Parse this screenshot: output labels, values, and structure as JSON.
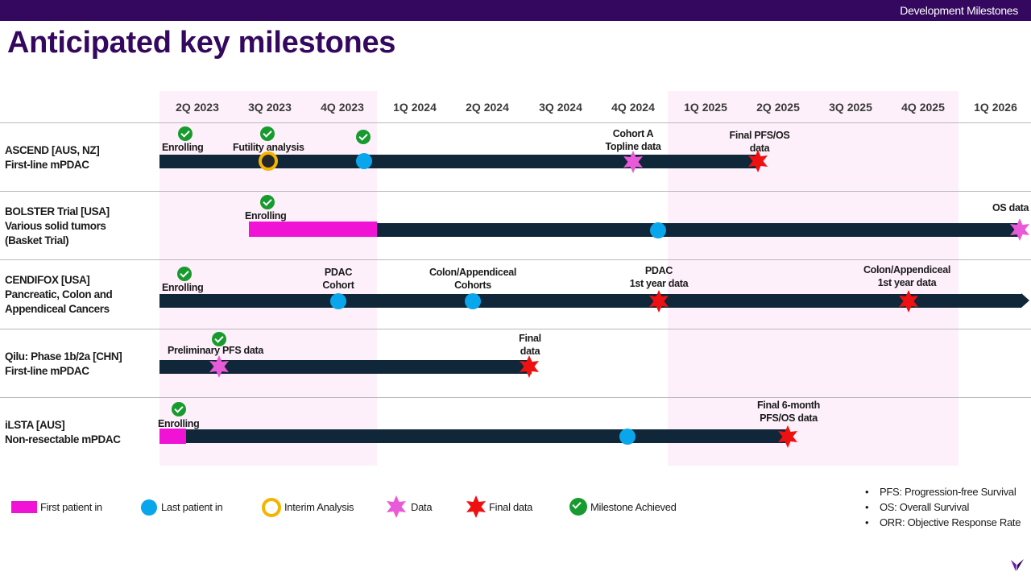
{
  "header": {
    "section_label": "Development Milestones"
  },
  "title": "Anticipated key milestones",
  "quarters": [
    "2Q 2023",
    "3Q 2023",
    "4Q 2023",
    "1Q 2024",
    "2Q 2024",
    "3Q 2024",
    "4Q 2024",
    "1Q 2025",
    "2Q 2025",
    "3Q 2025",
    "4Q 2025",
    "1Q 2026"
  ],
  "programs": [
    {
      "line1": "ASCEND [AUS, NZ]",
      "line2": "First-line mPDAC",
      "line3": ""
    },
    {
      "line1": "BOLSTER Trial [USA]",
      "line2": "Various solid tumors",
      "line3": "(Basket Trial)"
    },
    {
      "line1": "CENDIFOX [USA]",
      "line2": "Pancreatic, Colon and",
      "line3": "Appendiceal Cancers"
    },
    {
      "line1": "Qilu: Phase 1b/2a [CHN]",
      "line2": "First-line mPDAC",
      "line3": ""
    },
    {
      "line1": "iLSTA [AUS]",
      "line2": "Non-resectable mPDAC",
      "line3": ""
    }
  ],
  "labels": {
    "ascend_enrolling": "Enrolling",
    "ascend_futility": "Futility analysis",
    "ascend_cohort_a_1": "Cohort A",
    "ascend_cohort_a_2": "Topline data",
    "ascend_final_1": "Final PFS/OS",
    "ascend_final_2": "data",
    "bolster_enrolling": "Enrolling",
    "bolster_os": "OS data",
    "cendifox_enrolling": "Enrolling",
    "cendifox_pdac_1": "PDAC",
    "cendifox_pdac_2": "Cohort",
    "cendifox_colon_1": "Colon/Appendiceal",
    "cendifox_colon_2": "Cohorts",
    "cendifox_pdac_year_1": "PDAC",
    "cendifox_pdac_year_2": "1st year data",
    "cendifox_colon_year_1": "Colon/Appendiceal",
    "cendifox_colon_year_2": "1st year data",
    "qilu_prelim": "Preliminary PFS data",
    "qilu_final_1": "Final",
    "qilu_final_2": "data",
    "ilsta_enrolling": "Enrolling",
    "ilsta_final_1": "Final 6-month",
    "ilsta_final_2": "PFS/OS data"
  },
  "legend": {
    "first_patient": "First patient in",
    "last_patient": "Last patient in",
    "interim": "Interim Analysis",
    "data": "Data",
    "final_data": "Final data",
    "achieved": "Milestone Achieved"
  },
  "notes": [
    "PFS: Progression-free Survival",
    "OS: Overall Survival",
    "ORR: Objective Response Rate"
  ],
  "colors": {
    "brand": "#34085f",
    "bar": "#102639",
    "first_patient": "#f013d6",
    "last_patient": "#0aa6ec",
    "interim": "#f5b400",
    "data_star": "#e85ad8",
    "final_star": "#ee1111",
    "achieved": "#179b2e",
    "shade": "#fdf0fa"
  }
}
